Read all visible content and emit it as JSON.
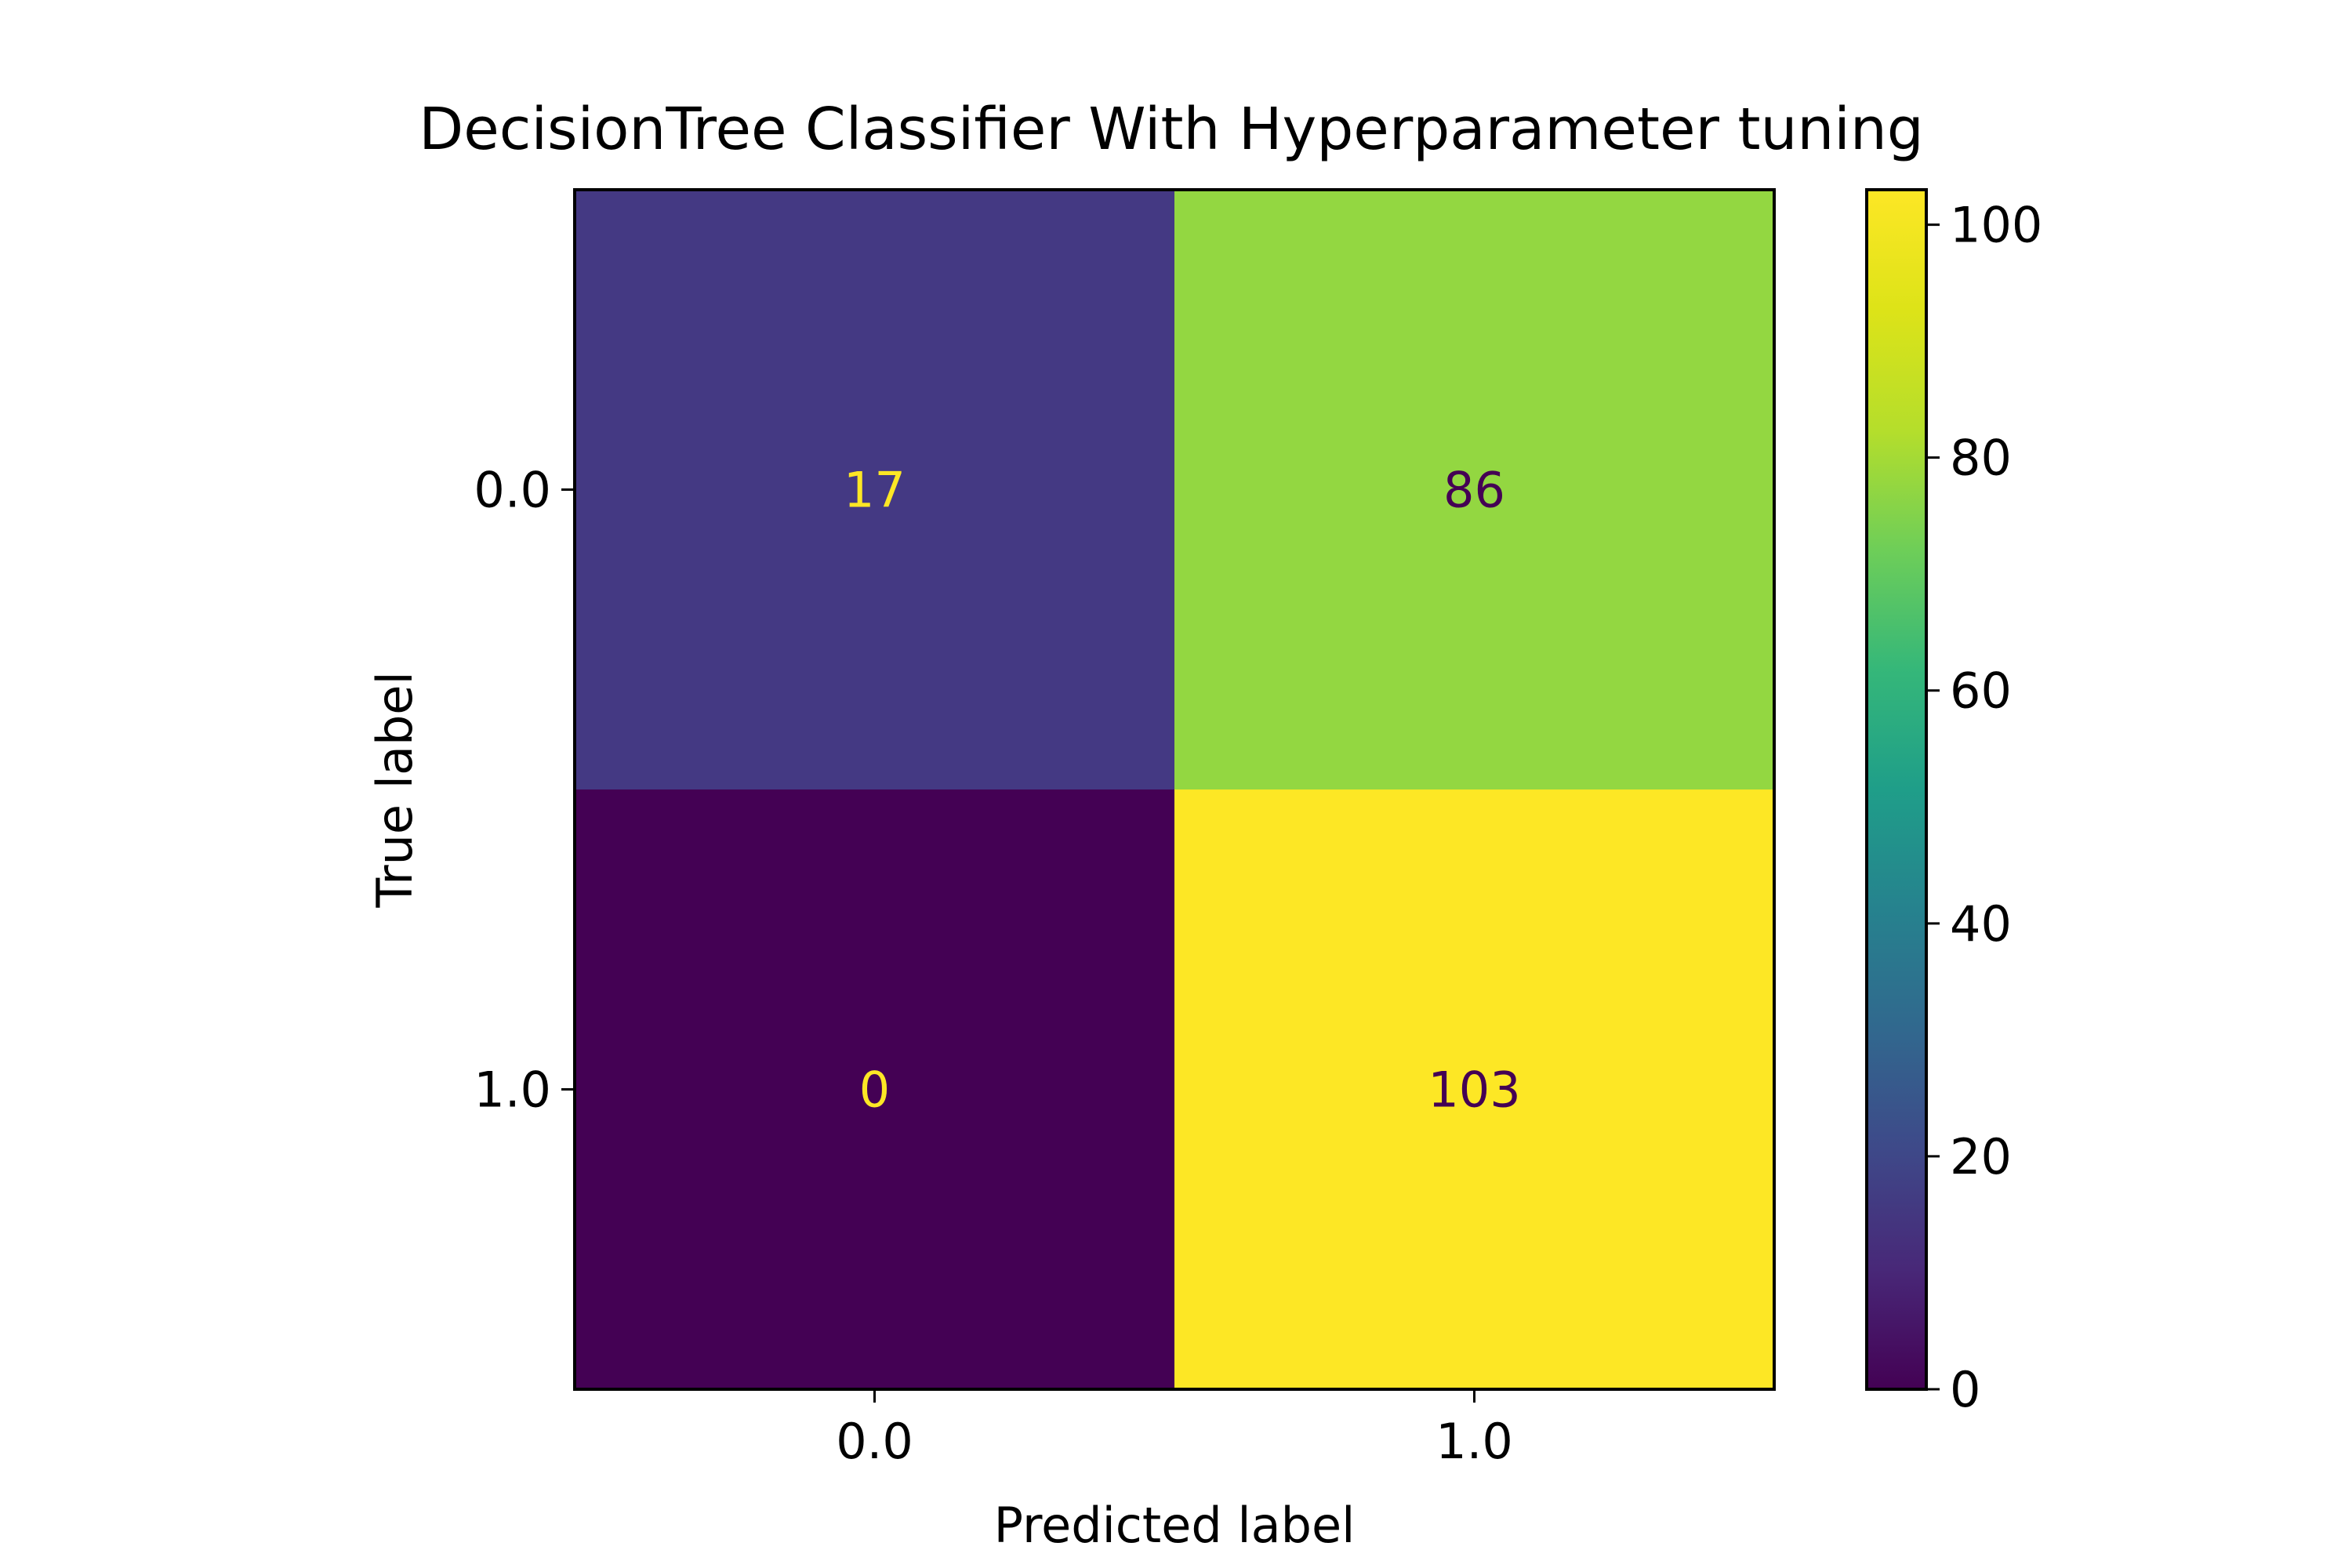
{
  "chart_data": {
    "type": "heatmap",
    "title": "DecisionTree Classifier With Hyperparameter tuning",
    "xlabel": "Predicted label",
    "ylabel": "True label",
    "x_categories": [
      "0.0",
      "1.0"
    ],
    "y_categories": [
      "0.0",
      "1.0"
    ],
    "matrix": [
      [
        17,
        86
      ],
      [
        0,
        103
      ]
    ],
    "cell_labels": [
      [
        "17",
        "86"
      ],
      [
        "0",
        "103"
      ]
    ],
    "colormap": "viridis",
    "colorbar": {
      "range": [
        0,
        103
      ],
      "ticks": [
        0,
        20,
        40,
        60,
        80,
        100
      ],
      "tick_labels": [
        "0",
        "20",
        "40",
        "60",
        "80",
        "100"
      ]
    },
    "colors": {
      "cell_0_0": "#443983",
      "cell_0_1": "#93d741",
      "cell_1_0": "#440154",
      "cell_1_1": "#fde725",
      "text_on_dark": "#fde725",
      "text_on_light": "#440154"
    }
  }
}
